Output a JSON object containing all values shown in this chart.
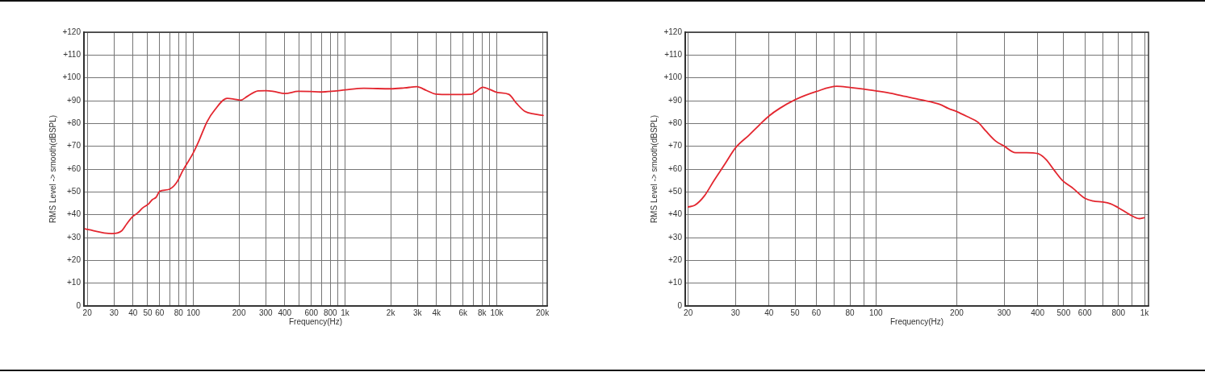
{
  "chart_data": [
    {
      "type": "line",
      "xlabel": "Frequency(Hz)",
      "ylabel": "RMS Level -> smooth(dBSPL)",
      "log": "x",
      "grid": true,
      "color": "#e3262f",
      "xlim": [
        19,
        21500
      ],
      "ylim": [
        0,
        120
      ],
      "xticks": [
        20,
        30,
        40,
        50,
        60,
        {
          "value": 70,
          "label": null
        },
        80,
        {
          "value": 90,
          "label": null
        },
        100,
        200,
        300,
        400,
        {
          "value": 500,
          "label": null
        },
        600,
        {
          "value": 700,
          "label": null
        },
        800,
        {
          "value": 900,
          "label": null
        },
        {
          "value": 1000,
          "label": "1k"
        },
        {
          "value": 2000,
          "label": "2k"
        },
        {
          "value": 3000,
          "label": "3k"
        },
        {
          "value": 4000,
          "label": "4k"
        },
        {
          "value": 5000,
          "label": null
        },
        {
          "value": 6000,
          "label": "6k"
        },
        {
          "value": 7000,
          "label": null
        },
        {
          "value": 8000,
          "label": "8k"
        },
        {
          "value": 9000,
          "label": null
        },
        {
          "value": 10000,
          "label": "10k"
        },
        {
          "value": 20000,
          "label": "20k"
        }
      ],
      "yticks": [
        0,
        {
          "value": 10,
          "label": "+10"
        },
        {
          "value": 20,
          "label": "+20"
        },
        {
          "value": 30,
          "label": "+30"
        },
        {
          "value": 40,
          "label": "+40"
        },
        {
          "value": 50,
          "label": "+50"
        },
        {
          "value": 60,
          "label": "+60"
        },
        {
          "value": 70,
          "label": "+70"
        },
        {
          "value": 80,
          "label": "+80"
        },
        {
          "value": 90,
          "label": "+90"
        },
        {
          "value": 100,
          "label": "+100"
        },
        {
          "value": 110,
          "label": "+110"
        },
        {
          "value": 120,
          "label": "+120"
        }
      ],
      "x": [
        19.2,
        29,
        33.5,
        36.4,
        39.4,
        42.8,
        46.4,
        50.4,
        53.6,
        56.9,
        60,
        68.4,
        77.2,
        85.5,
        100,
        109,
        123,
        139,
        167,
        185,
        205,
        227,
        267,
        302,
        341,
        402,
        492,
        590,
        691,
        849,
        1000,
        1330,
        2000,
        2470,
        2970,
        3430,
        3960,
        4950,
        6740,
        7300,
        8100,
        8990,
        10100,
        12000,
        13500,
        15300,
        17700,
        20200
      ],
      "values": [
        33.8,
        31.7,
        32.8,
        36.0,
        38.9,
        40.7,
        43.0,
        44.6,
        46.6,
        47.7,
        50.3,
        51.0,
        53.9,
        59.5,
        67.2,
        72.5,
        80.7,
        86.1,
        91.0,
        90.7,
        90.2,
        91.9,
        94.3,
        94.4,
        94.0,
        93.1,
        94.1,
        94.0,
        93.8,
        94.2,
        94.7,
        95.4,
        95.2,
        95.6,
        96.1,
        94.5,
        92.9,
        92.7,
        92.8,
        94.0,
        95.9,
        94.9,
        93.6,
        92.8,
        88.8,
        85.3,
        84.1,
        83.5
      ]
    },
    {
      "type": "line",
      "xlabel": "Frequency(Hz)",
      "ylabel": "RMS Level -> smooth(dBSPL)",
      "log": "x",
      "grid": true,
      "color": "#e3262f",
      "xlim": [
        19.5,
        1035
      ],
      "ylim": [
        0,
        120
      ],
      "xticks": [
        20,
        30,
        40,
        50,
        60,
        {
          "value": 70,
          "label": null
        },
        80,
        {
          "value": 90,
          "label": null
        },
        100,
        200,
        300,
        400,
        500,
        600,
        {
          "value": 700,
          "label": null
        },
        800,
        {
          "value": 900,
          "label": null
        },
        {
          "value": 1000,
          "label": "1k"
        }
      ],
      "yticks": [
        0,
        {
          "value": 10,
          "label": "+10"
        },
        {
          "value": 20,
          "label": "+20"
        },
        {
          "value": 30,
          "label": "+30"
        },
        {
          "value": 40,
          "label": "+40"
        },
        {
          "value": 50,
          "label": "+50"
        },
        {
          "value": 60,
          "label": "+60"
        },
        {
          "value": 70,
          "label": "+70"
        },
        {
          "value": 80,
          "label": "+80"
        },
        {
          "value": 90,
          "label": "+90"
        },
        {
          "value": 100,
          "label": "+100"
        },
        {
          "value": 110,
          "label": "+110"
        },
        {
          "value": 120,
          "label": "+120"
        }
      ],
      "x": [
        20,
        21.2,
        23,
        24.9,
        27.3,
        30,
        33.7,
        36.8,
        40,
        43.8,
        50,
        60,
        71.5,
        80,
        90,
        100,
        115,
        122,
        147,
        173,
        186,
        200,
        218,
        240,
        257,
        279,
        300,
        331,
        364,
        400,
        430,
        461,
        494,
        543,
        600,
        644,
        699,
        748,
        801,
        880,
        956,
        996
      ],
      "values": [
        43.4,
        44.2,
        48.3,
        54.8,
        61.9,
        69.3,
        74.9,
        79.3,
        83.3,
        86.6,
        90.4,
        94.0,
        96.3,
        95.8,
        95.1,
        94.3,
        93.1,
        92.4,
        90.4,
        88.4,
        86.6,
        85.2,
        83.1,
        80.5,
        76.6,
        72.3,
        70.1,
        67.2,
        67.2,
        66.8,
        64.2,
        59.5,
        55.1,
        51.5,
        47.2,
        46.0,
        45.6,
        44.8,
        43.0,
        40.1,
        38.3,
        38.7
      ]
    }
  ]
}
